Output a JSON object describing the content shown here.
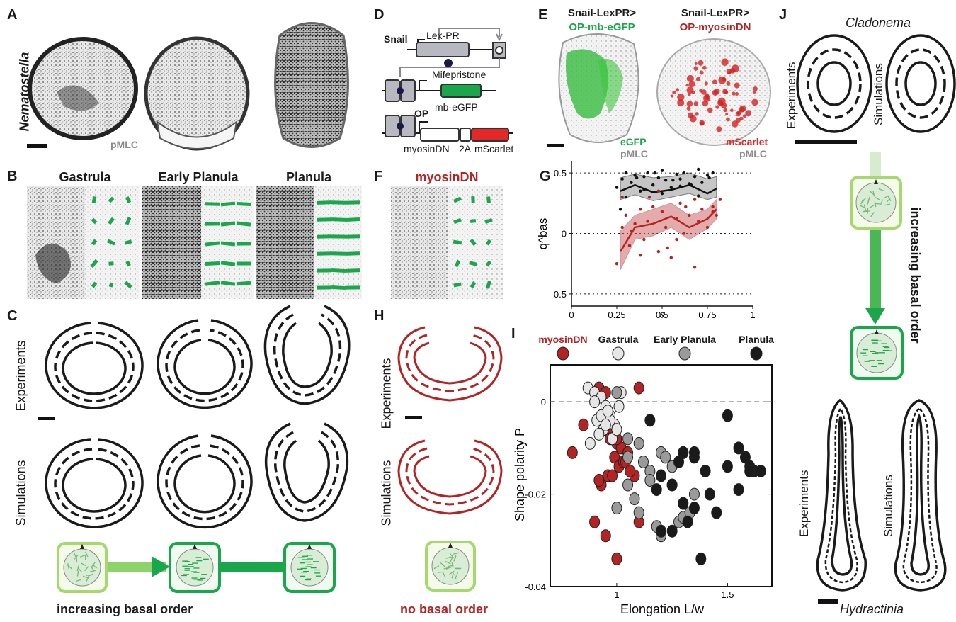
{
  "panels": {
    "A": {
      "letter": "A",
      "organism": "Nematostella",
      "stain": "pMLC"
    },
    "B": {
      "letter": "B",
      "stages": [
        "Gastrula",
        "Early Planula",
        "Planula"
      ]
    },
    "C": {
      "letter": "C",
      "row_experiments": "Experiments",
      "row_simulations": "Simulations",
      "caption": "increasing basal order"
    },
    "D": {
      "letter": "D",
      "snail": "Snail",
      "lexpr": "Lex-PR",
      "mifepristone": "Mifepristone",
      "op": "OP",
      "mb_egfp": "mb-eGFP",
      "myosindn": "myosinDN",
      "two_a": "2A",
      "mscarlet": "mScarlet"
    },
    "E": {
      "letter": "E",
      "left_title_1": "Snail-LexPR>",
      "left_title_2": "OP-mb-eGFP",
      "right_title_1": "Snail-LexPR>",
      "right_title_2": "OP-myosinDN",
      "left_leg_1": "eGFP",
      "left_leg_2": "pMLC",
      "right_leg_1": "mScarlet",
      "right_leg_2": "pMLC"
    },
    "F": {
      "letter": "F",
      "title": "myosinDN"
    },
    "G": {
      "letter": "G"
    },
    "H": {
      "letter": "H",
      "row_experiments": "Experiments",
      "row_simulations": "Simulations",
      "caption": "no basal order"
    },
    "I": {
      "letter": "I",
      "legend": [
        "myosinDN",
        "Gastrula",
        "Early Planula",
        "Planula"
      ]
    },
    "J": {
      "letter": "J",
      "top_species": "Cladonema",
      "bottom_species": "Hydractinia",
      "row_experiments": "Experiments",
      "row_simulations": "Simulations",
      "caption": "increasing basal order"
    }
  },
  "colors": {
    "green": "#1aa64a",
    "light_green": "#a6d86e",
    "red": "#b52424",
    "grey": "#8a8a8a"
  },
  "chart_data": [
    {
      "panel": "G",
      "type": "scatter",
      "xlabel": "s",
      "ylabel": "q^bas",
      "xlim": [
        0,
        1
      ],
      "ylim": [
        -0.6,
        0.6
      ],
      "xticks": [
        "0",
        "0.25",
        "0.5",
        "0.75",
        "1"
      ],
      "yticks": [
        "0.5",
        "0",
        "-0.5"
      ],
      "grid": "dotted lines at -0.5, 0, 0.5",
      "series": [
        {
          "color": "#111111",
          "x": [
            0.25,
            0.28,
            0.3,
            0.33,
            0.35,
            0.38,
            0.4,
            0.42,
            0.45,
            0.48,
            0.5,
            0.52,
            0.55,
            0.58,
            0.6,
            0.62,
            0.65,
            0.68,
            0.7,
            0.72,
            0.75,
            0.78,
            0.3,
            0.4,
            0.5,
            0.6,
            0.7,
            0.27,
            0.36,
            0.46,
            0.56,
            0.66,
            0.76
          ],
          "y": [
            0.38,
            0.45,
            0.5,
            0.42,
            0.48,
            0.35,
            0.47,
            0.5,
            0.4,
            0.46,
            0.52,
            0.44,
            0.38,
            0.49,
            0.45,
            0.5,
            0.41,
            0.47,
            0.53,
            0.42,
            0.48,
            0.5,
            0.3,
            0.36,
            0.33,
            0.39,
            0.31,
            0.2,
            0.46,
            0.5,
            0.44,
            0.4,
            0.46
          ],
          "trend_x": [
            0.27,
            0.35,
            0.45,
            0.55,
            0.65,
            0.75,
            0.8
          ],
          "trend_y": [
            0.35,
            0.4,
            0.34,
            0.36,
            0.4,
            0.33,
            0.37
          ],
          "band_low": [
            0.28,
            0.32,
            0.27,
            0.3,
            0.33,
            0.28,
            0.3
          ],
          "band_high": [
            0.46,
            0.49,
            0.46,
            0.47,
            0.5,
            0.45,
            0.47
          ]
        },
        {
          "color": "#b52424",
          "x": [
            0.25,
            0.28,
            0.3,
            0.32,
            0.35,
            0.38,
            0.4,
            0.42,
            0.45,
            0.48,
            0.5,
            0.52,
            0.55,
            0.58,
            0.6,
            0.62,
            0.65,
            0.68,
            0.7,
            0.72,
            0.75,
            0.78,
            0.8,
            0.82,
            0.28,
            0.38,
            0.48,
            0.58,
            0.68,
            0.78,
            0.33,
            0.43,
            0.53,
            0.63
          ],
          "y": [
            -0.25,
            0.05,
            0.15,
            -0.1,
            0.08,
            0.2,
            -0.05,
            0.1,
            0.22,
            -0.15,
            0.18,
            0.05,
            -0.2,
            0.12,
            0.25,
            0.0,
            0.15,
            -0.28,
            0.1,
            0.2,
            0.05,
            0.22,
            0.15,
            0.28,
            0.3,
            -0.18,
            0.35,
            -0.05,
            0.28,
            0.18,
            0.02,
            0.3,
            -0.12,
            0.22
          ],
          "trend_x": [
            0.27,
            0.35,
            0.45,
            0.55,
            0.65,
            0.75,
            0.8
          ],
          "trend_y": [
            -0.15,
            0.05,
            0.08,
            0.14,
            0.05,
            0.12,
            0.2
          ],
          "band_low": [
            -0.3,
            -0.05,
            -0.02,
            0.05,
            -0.05,
            0.04,
            0.12
          ],
          "band_high": [
            0.02,
            0.15,
            0.2,
            0.25,
            0.15,
            0.2,
            0.28
          ]
        }
      ]
    },
    {
      "panel": "I",
      "type": "scatter",
      "xlabel": "Elongation L/w",
      "ylabel": "Shape polarity P",
      "xlim": [
        0.7,
        1.7
      ],
      "ylim": [
        -0.04,
        0.008
      ],
      "xticks": [
        "1",
        "1.5"
      ],
      "yticks": [
        "0",
        "-0.02",
        "-0.04"
      ],
      "grid": "dashed line at y = 0",
      "series": [
        {
          "name": "myosinDN",
          "color": "#b52424",
          "x": [
            0.92,
            0.95,
            0.98,
            0.97,
            1.0,
            1.02,
            1.05,
            0.99,
            1.01,
            1.03,
            1.08,
            0.96,
            0.93,
            1.1,
            0.8,
            0.85,
            0.9,
            0.95,
            1.0,
            1.1,
            1.0,
            0.92,
            0.98,
            1.04,
            1.06
          ],
          "y": [
            0.003,
            0.002,
            -0.007,
            -0.008,
            -0.009,
            -0.01,
            -0.011,
            -0.012,
            -0.014,
            -0.013,
            -0.016,
            -0.016,
            -0.018,
            -0.026,
            -0.011,
            -0.005,
            -0.026,
            -0.029,
            -0.034,
            0.003,
            -0.008,
            -0.017,
            -0.016,
            -0.013,
            -0.015
          ]
        },
        {
          "name": "Gastrula",
          "color": "#e6e6e6",
          "x": [
            0.87,
            0.9,
            0.93,
            0.95,
            0.97,
            0.99,
            0.91,
            0.94,
            0.96,
            0.92,
            0.98,
            1.0,
            0.88,
            0.93,
            0.97,
            0.95,
            1.02,
            0.9,
            1.01,
            0.96
          ],
          "y": [
            0.003,
            0.002,
            0.001,
            -0.001,
            -0.003,
            -0.005,
            -0.004,
            -0.006,
            -0.002,
            -0.007,
            -0.008,
            -0.006,
            -0.009,
            -0.003,
            -0.004,
            -0.005,
            0.002,
            0.0,
            -0.001,
            -0.002
          ]
        },
        {
          "name": "Early Planula",
          "color": "#9a9a9a",
          "x": [
            1.0,
            1.05,
            1.1,
            1.12,
            1.15,
            1.2,
            1.22,
            1.25,
            1.3,
            1.05,
            1.08,
            1.15,
            1.25,
            1.35,
            1.1,
            1.0,
            1.18,
            1.28,
            1.2,
            1.3,
            1.33,
            1.05
          ],
          "y": [
            0.002,
            -0.008,
            -0.009,
            -0.013,
            -0.015,
            -0.011,
            -0.012,
            -0.014,
            -0.011,
            -0.018,
            -0.021,
            -0.017,
            -0.018,
            -0.02,
            -0.024,
            -0.023,
            -0.027,
            -0.026,
            -0.029,
            -0.025,
            -0.024,
            -0.012
          ]
        },
        {
          "name": "Planula",
          "color": "#1a1a1a",
          "x": [
            1.15,
            1.3,
            1.35,
            1.5,
            1.55,
            1.58,
            1.6,
            1.62,
            1.65,
            1.55,
            1.45,
            1.35,
            1.3,
            1.25,
            1.2,
            1.18,
            1.2,
            1.25,
            1.32,
            1.4,
            1.5,
            1.6,
            1.38,
            1.42,
            1.28,
            1.35
          ],
          "y": [
            -0.004,
            -0.011,
            -0.012,
            -0.003,
            -0.01,
            -0.012,
            -0.014,
            -0.015,
            -0.015,
            -0.019,
            -0.024,
            -0.023,
            -0.022,
            -0.018,
            -0.016,
            -0.019,
            -0.028,
            -0.028,
            -0.026,
            -0.015,
            -0.014,
            -0.015,
            -0.034,
            -0.02,
            -0.013,
            -0.011
          ]
        }
      ]
    }
  ]
}
